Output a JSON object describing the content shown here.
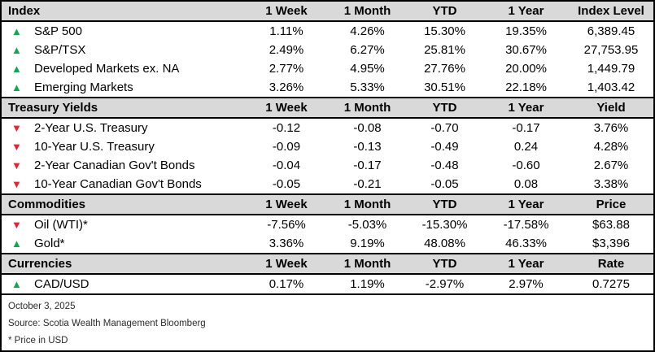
{
  "table": {
    "period_columns": [
      "1 Week",
      "1 Month",
      "YTD",
      "1 Year"
    ],
    "sections": [
      {
        "title": "Index",
        "value_column": "Index Level",
        "rows": [
          {
            "label": "S&P 500",
            "direction": "up",
            "arrow": "▲",
            "values": [
              "1.11%",
              "4.26%",
              "15.30%",
              "19.35%",
              "6,389.45"
            ]
          },
          {
            "label": "S&P/TSX",
            "direction": "up",
            "arrow": "▲",
            "values": [
              "2.49%",
              "6.27%",
              "25.81%",
              "30.67%",
              "27,753.95"
            ]
          },
          {
            "label": "Developed Markets ex. NA",
            "direction": "up",
            "arrow": "▲",
            "values": [
              "2.77%",
              "4.95%",
              "27.76%",
              "20.00%",
              "1,449.79"
            ]
          },
          {
            "label": "Emerging Markets",
            "direction": "up",
            "arrow": "▲",
            "values": [
              "3.26%",
              "5.33%",
              "30.51%",
              "22.18%",
              "1,403.42"
            ]
          }
        ]
      },
      {
        "title": "Treasury Yields",
        "value_column": "Yield",
        "rows": [
          {
            "label": "2-Year U.S. Treasury",
            "direction": "down",
            "arrow": "▼",
            "values": [
              "-0.12",
              "-0.08",
              "-0.70",
              "-0.17",
              "3.76%"
            ]
          },
          {
            "label": "10-Year U.S. Treasury",
            "direction": "down",
            "arrow": "▼",
            "values": [
              "-0.09",
              "-0.13",
              "-0.49",
              "0.24",
              "4.28%"
            ]
          },
          {
            "label": "2-Year Canadian Gov't Bonds",
            "direction": "down",
            "arrow": "▼",
            "values": [
              "-0.04",
              "-0.17",
              "-0.48",
              "-0.60",
              "2.67%"
            ]
          },
          {
            "label": "10-Year Canadian Gov't Bonds",
            "direction": "down",
            "arrow": "▼",
            "values": [
              "-0.05",
              "-0.21",
              "-0.05",
              "0.08",
              "3.38%"
            ]
          }
        ]
      },
      {
        "title": "Commodities",
        "value_column": "Price",
        "rows": [
          {
            "label": "Oil (WTI)*",
            "direction": "down",
            "arrow": "▼",
            "values": [
              "-7.56%",
              "-5.03%",
              "-15.30%",
              "-17.58%",
              "$63.88"
            ]
          },
          {
            "label": "Gold*",
            "direction": "up",
            "arrow": "▲",
            "values": [
              "3.36%",
              "9.19%",
              "48.08%",
              "46.33%",
              "$3,396"
            ]
          }
        ]
      },
      {
        "title": "Currencies",
        "value_column": "Rate",
        "rows": [
          {
            "label": "CAD/USD",
            "direction": "up",
            "arrow": "▲",
            "values": [
              "0.17%",
              "1.19%",
              "-2.97%",
              "2.97%",
              "0.7275"
            ]
          }
        ]
      }
    ]
  },
  "footer": {
    "date": "October 3, 2025",
    "source": "Source: Scotia Wealth Management Bloomberg",
    "note": "* Price in USD"
  },
  "colors": {
    "up_green": "#10A750",
    "down_red": "#E8232E",
    "section_header_bg": "#D9D9D9"
  }
}
